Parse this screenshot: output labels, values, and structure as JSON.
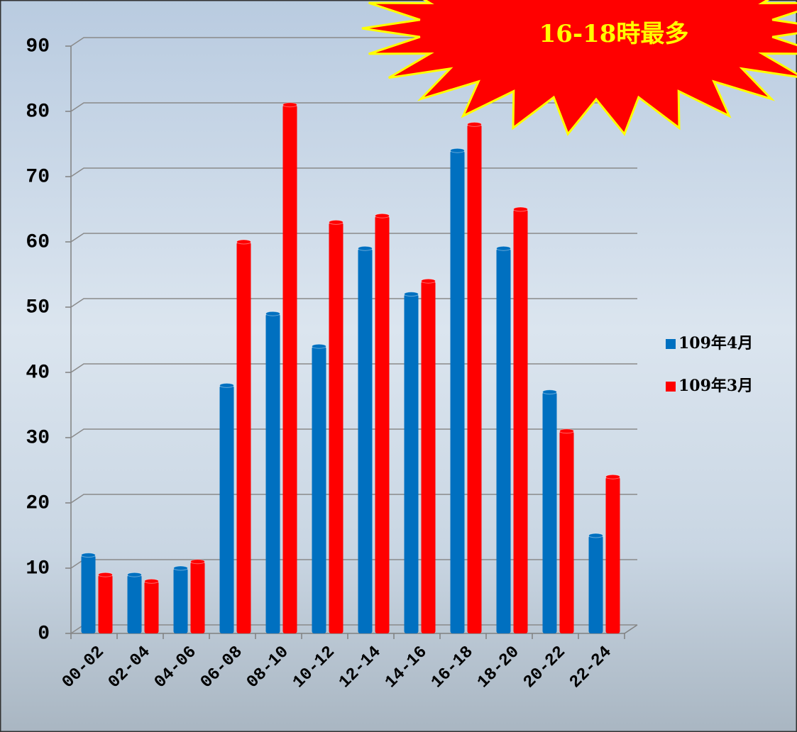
{
  "chart_data": {
    "type": "bar",
    "annotation": "16-18時最多",
    "categories": [
      "00-02",
      "02-04",
      "04-06",
      "06-08",
      "08-10",
      "10-12",
      "12-14",
      "14-16",
      "16-18",
      "18-20",
      "20-22",
      "22-24"
    ],
    "series": [
      {
        "name": "109年4月",
        "color": "#0070c0",
        "values": [
          12,
          9,
          10,
          38,
          49,
          44,
          59,
          52,
          74,
          59,
          37,
          15
        ]
      },
      {
        "name": "109年3月",
        "color": "#ff0000",
        "values": [
          9,
          8,
          11,
          60,
          81,
          63,
          64,
          54,
          78,
          65,
          31,
          24
        ]
      }
    ],
    "ylim": [
      0,
      90
    ],
    "yticks": [
      0,
      10,
      20,
      30,
      40,
      50,
      60,
      70,
      80,
      90
    ],
    "grid": true,
    "legend": "right"
  }
}
